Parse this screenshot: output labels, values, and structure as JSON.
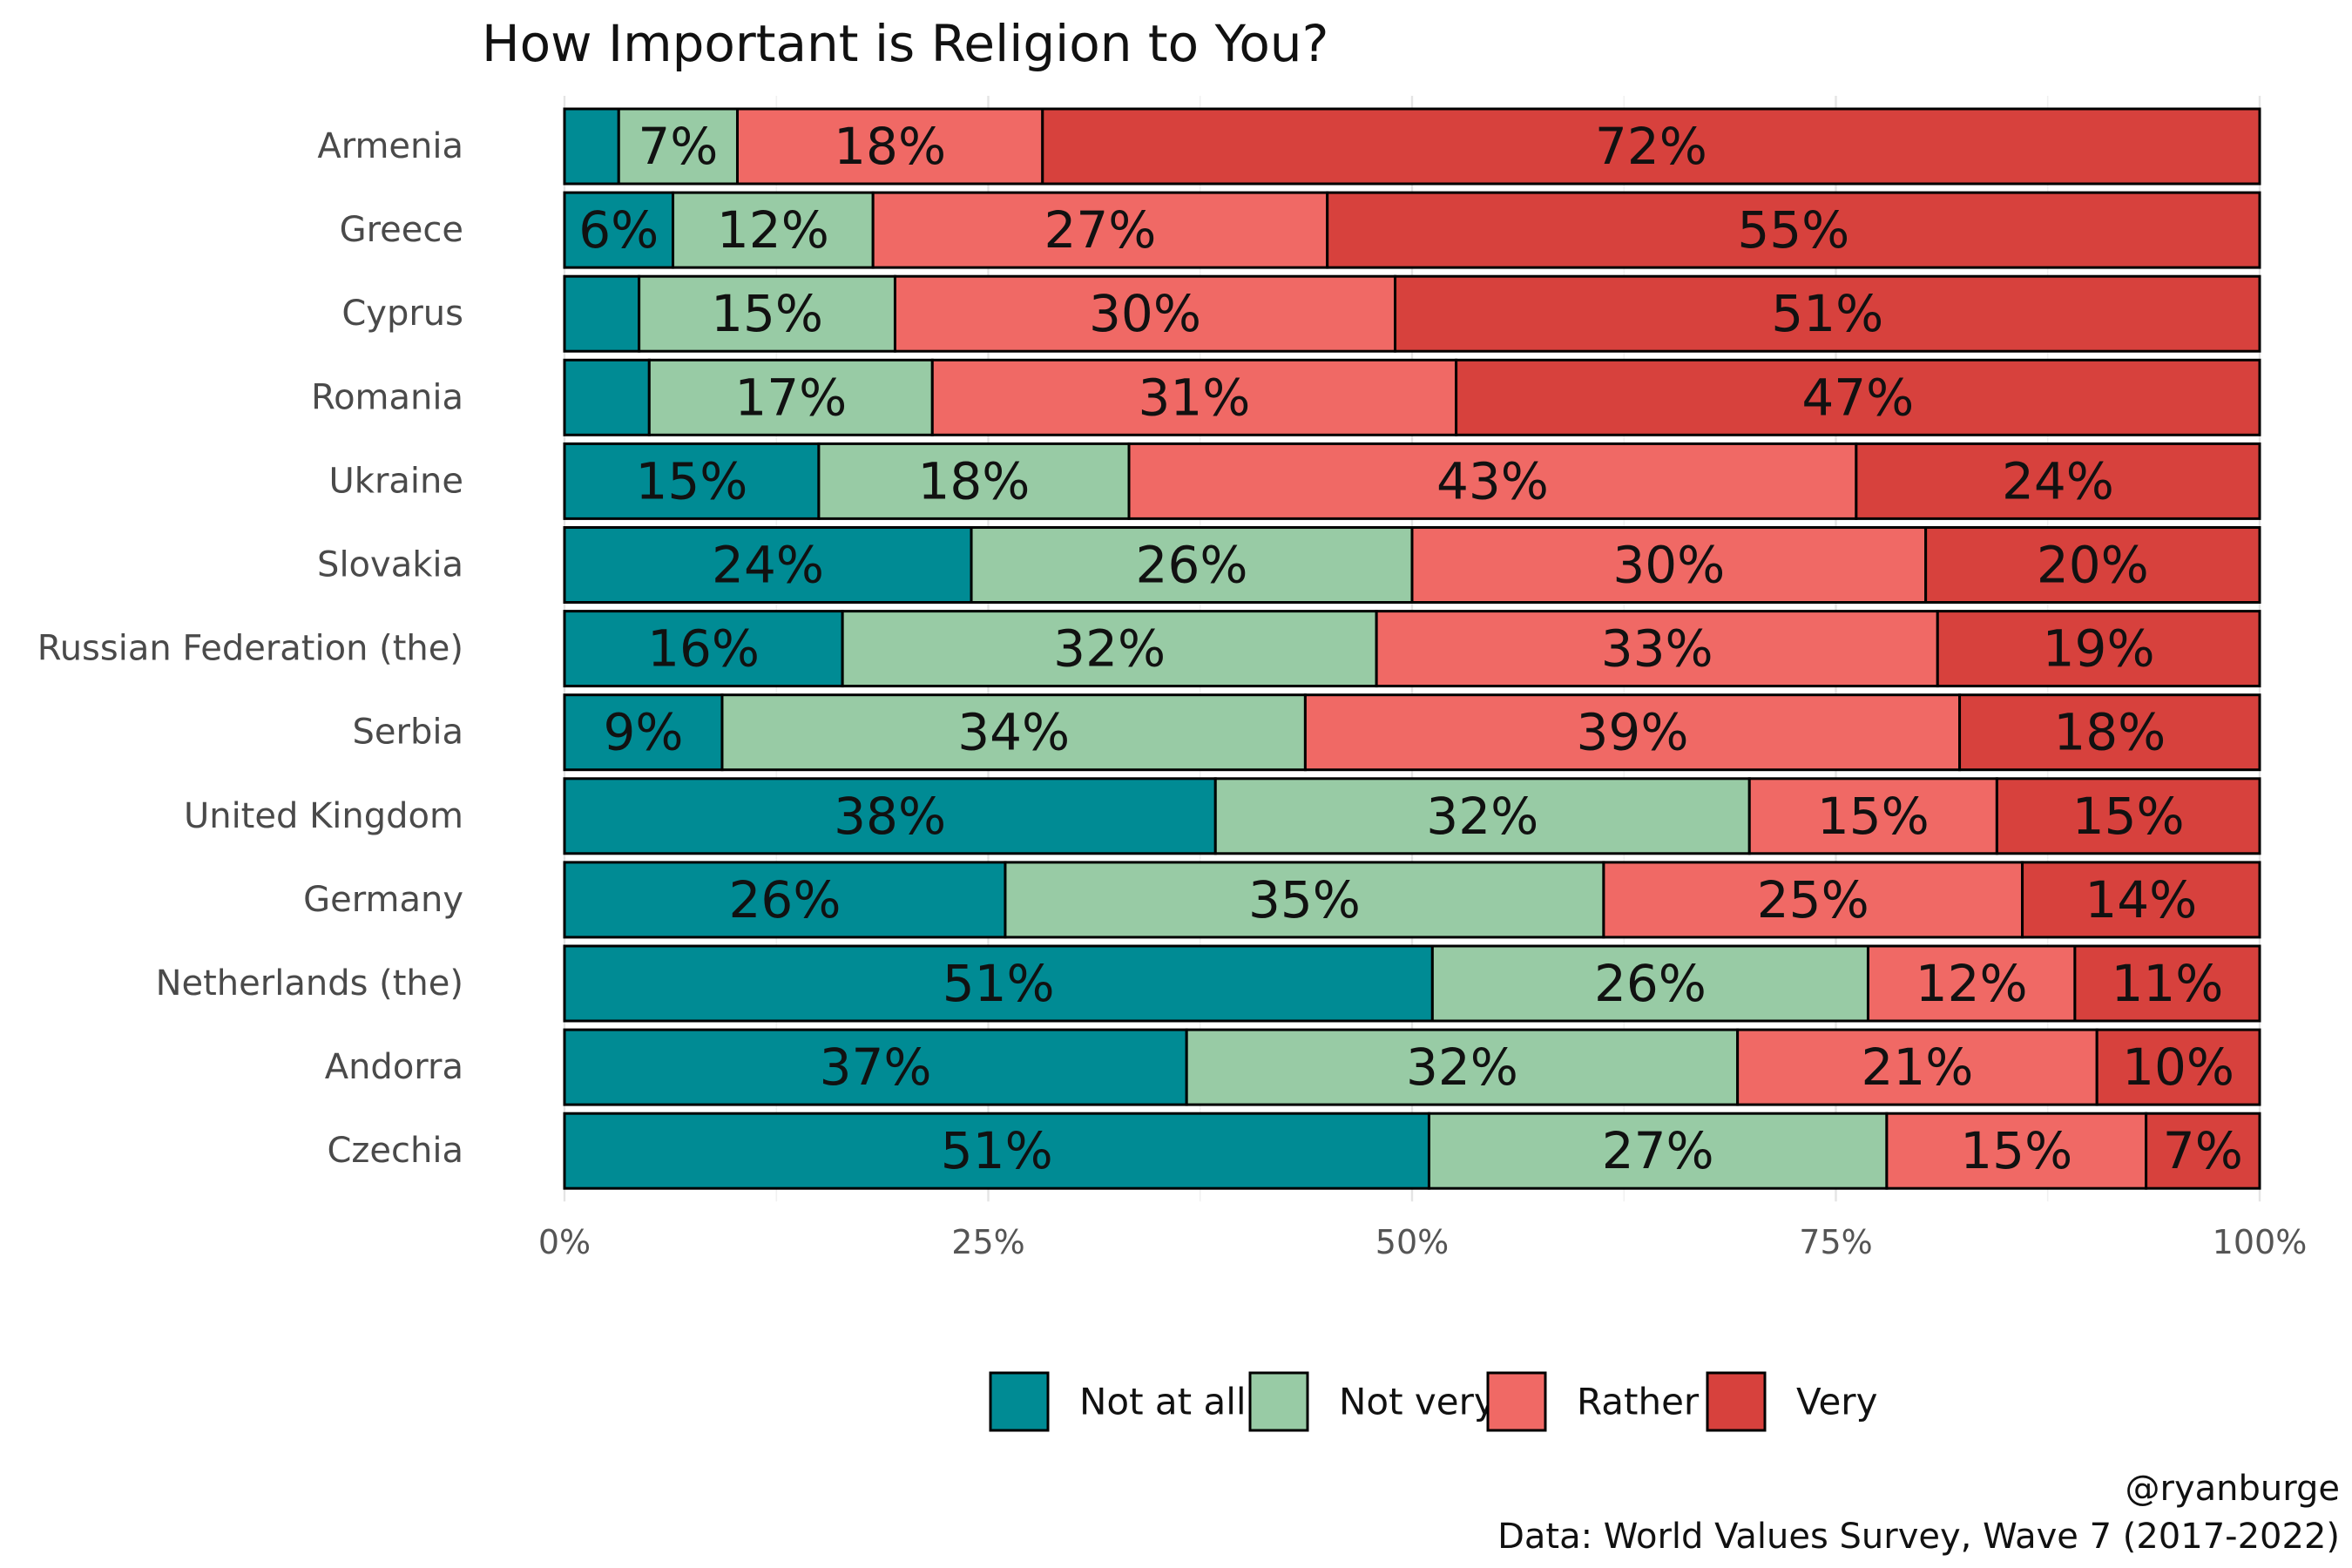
{
  "chart_data": {
    "type": "bar",
    "orientation": "horizontal",
    "stacked": true,
    "normalized": true,
    "title": "How Important is Religion to You?",
    "caption": [
      "@ryanburge",
      "Data: World Values Survey, Wave 7 (2017-2022)"
    ],
    "xlim": [
      0,
      1
    ],
    "x_ticks": [
      0,
      0.25,
      0.5,
      0.75,
      1
    ],
    "x_tick_labels": [
      "0%",
      "25%",
      "50%",
      "75%",
      "100%"
    ],
    "grid": true,
    "legend_position": "bottom",
    "categories": [
      "Armenia",
      "Greece",
      "Cyprus",
      "Romania",
      "Ukraine",
      "Slovakia",
      "Russian Federation (the)",
      "Serbia",
      "United Kingdom",
      "Germany",
      "Netherlands (the)",
      "Andorra",
      "Czechia"
    ],
    "series": [
      {
        "name": "Not at all",
        "color": "#008b94",
        "values": [
          0.032,
          0.064,
          0.044,
          0.05,
          0.15,
          0.24,
          0.164,
          0.093,
          0.384,
          0.26,
          0.512,
          0.367,
          0.51
        ],
        "labels": [
          "",
          "6%",
          "",
          "",
          "15%",
          "24%",
          "16%",
          "9%",
          "38%",
          "26%",
          "51%",
          "37%",
          "51%"
        ]
      },
      {
        "name": "Not very",
        "color": "#98cba5",
        "values": [
          0.07,
          0.118,
          0.151,
          0.167,
          0.183,
          0.26,
          0.315,
          0.344,
          0.315,
          0.353,
          0.257,
          0.325,
          0.27
        ],
        "labels": [
          "7%",
          "12%",
          "15%",
          "17%",
          "18%",
          "26%",
          "32%",
          "34%",
          "32%",
          "35%",
          "26%",
          "32%",
          "27%"
        ]
      },
      {
        "name": "Rather",
        "color": "#f06965",
        "values": [
          0.18,
          0.268,
          0.295,
          0.309,
          0.429,
          0.303,
          0.331,
          0.386,
          0.146,
          0.247,
          0.122,
          0.212,
          0.153
        ],
        "labels": [
          "18%",
          "27%",
          "30%",
          "31%",
          "43%",
          "30%",
          "33%",
          "39%",
          "15%",
          "25%",
          "12%",
          "21%",
          "15%"
        ]
      },
      {
        "name": "Very",
        "color": "#d7413d",
        "values": [
          0.718,
          0.55,
          0.51,
          0.474,
          0.238,
          0.197,
          0.19,
          0.177,
          0.155,
          0.14,
          0.109,
          0.096,
          0.067
        ],
        "labels": [
          "72%",
          "55%",
          "51%",
          "47%",
          "24%",
          "20%",
          "19%",
          "18%",
          "15%",
          "14%",
          "11%",
          "10%",
          "7%"
        ]
      }
    ]
  }
}
